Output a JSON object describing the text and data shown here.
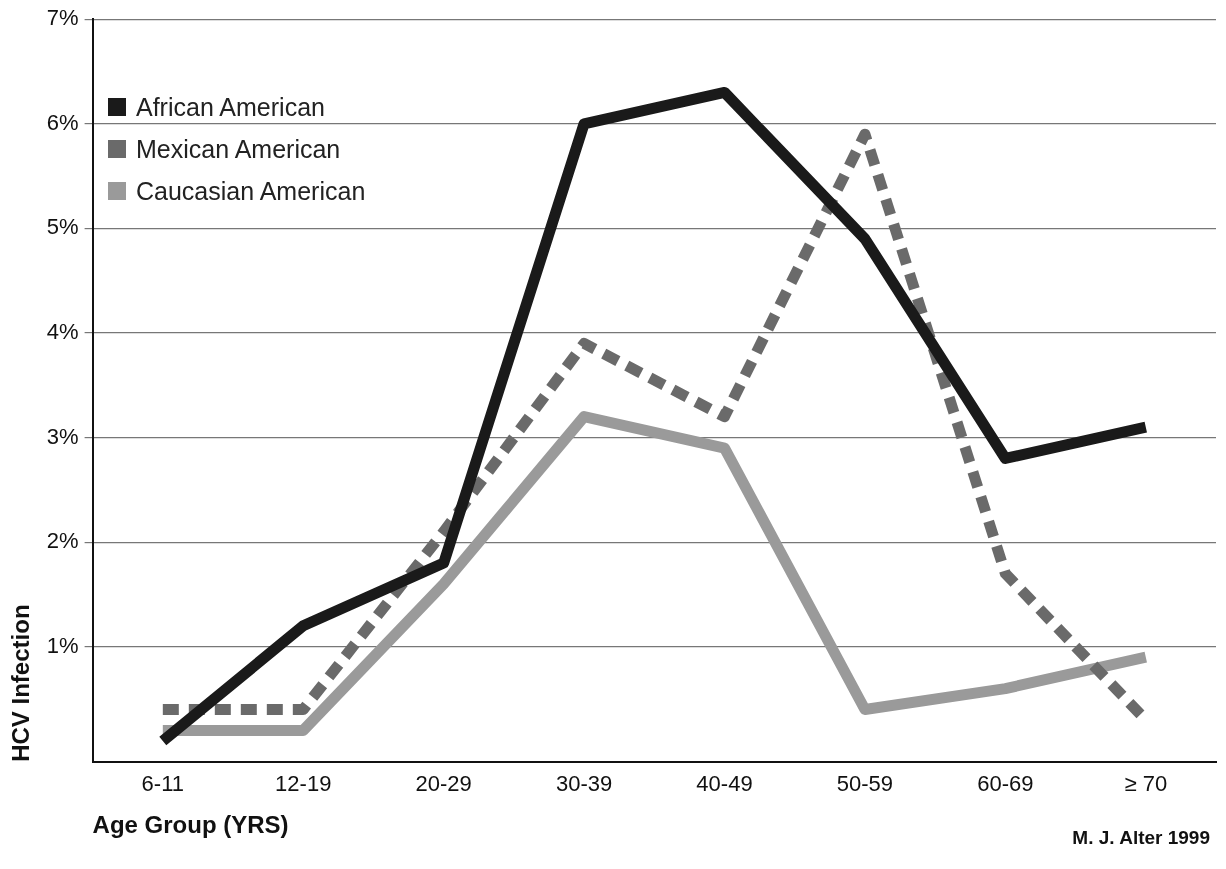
{
  "chart_data": {
    "type": "line",
    "ylabel": "HCV Infection",
    "xlabel": "Age Group (YRS)",
    "annotations": [
      "M. J. Alter 1999"
    ],
    "categories": [
      "6-11",
      "12-19",
      "20-29",
      "30-39",
      "40-49",
      "50-59",
      "60-69",
      "≥ 70"
    ],
    "series": [
      {
        "name": "African American",
        "color": "#1a1a1a",
        "values": [
          0.1,
          1.2,
          1.8,
          6.0,
          6.3,
          4.9,
          2.8,
          3.1
        ]
      },
      {
        "name": "Mexican American",
        "color": "#6a6a6a",
        "line_style": "dashed",
        "values": [
          0.4,
          0.4,
          2.1,
          3.9,
          3.2,
          5.9,
          1.7,
          0.3
        ]
      },
      {
        "name": "Caucasian American",
        "color": "#9a9a9a",
        "values": [
          0.2,
          0.2,
          1.6,
          3.2,
          2.9,
          0.4,
          0.6,
          0.9
        ]
      }
    ],
    "ylim": [
      -0.1,
      7
    ],
    "yticks": [
      {
        "value": 1,
        "label": "1%"
      },
      {
        "value": 2,
        "label": "2%"
      },
      {
        "value": 3,
        "label": "3%"
      },
      {
        "value": 4,
        "label": "4%"
      },
      {
        "value": 5,
        "label": "5%"
      },
      {
        "value": 6,
        "label": "6%"
      },
      {
        "value": 7,
        "label": "7%"
      }
    ],
    "grid": "y",
    "legend": "top left",
    "marker": "none"
  }
}
